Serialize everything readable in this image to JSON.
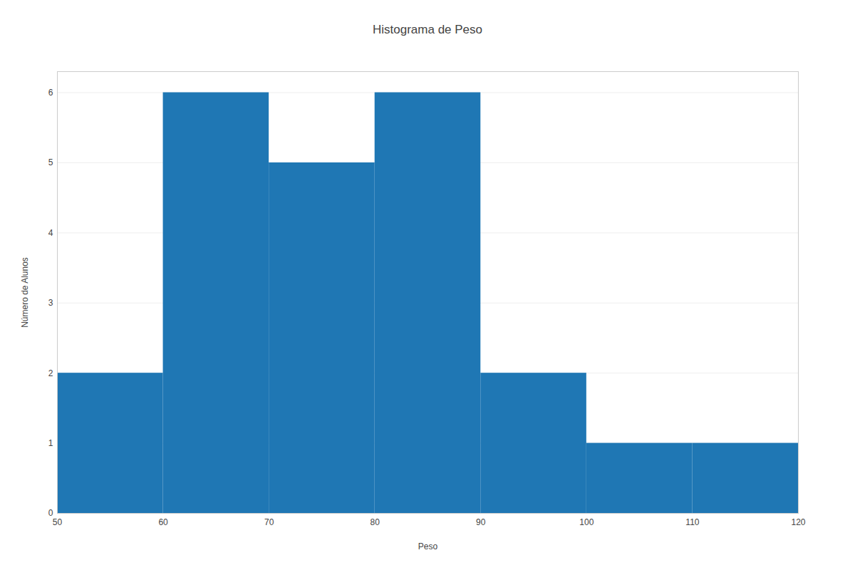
{
  "chart_data": {
    "type": "histogram",
    "title": "Histograma de Peso",
    "x_label": "Peso",
    "y_label": "Número de Alunos",
    "bins": [
      50,
      60,
      70,
      80,
      90,
      100,
      110,
      120
    ],
    "values": [
      2,
      6,
      5,
      6,
      2,
      1,
      1
    ],
    "color": "#1f77b4",
    "xlim": [
      50,
      120
    ],
    "xticks": [
      50,
      60,
      70,
      80,
      90,
      100,
      110,
      120
    ],
    "ylim": [
      0,
      6.3
    ],
    "yticks": [
      0,
      1,
      2,
      3,
      4,
      5,
      6
    ],
    "grid": true
  }
}
